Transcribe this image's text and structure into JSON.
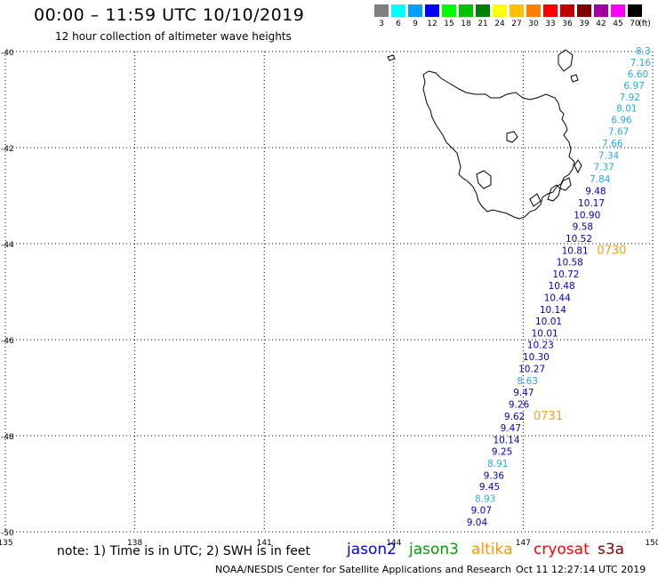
{
  "header": {
    "title": "00:00 – 11:59 UTC 10/10/2019",
    "subtitle": "12 hour collection of altimeter wave heights"
  },
  "scale": {
    "unit": "(ft)",
    "bins": [
      {
        "label": "3",
        "color": "#808080"
      },
      {
        "label": "6",
        "color": "#00ffff"
      },
      {
        "label": "9",
        "color": "#00a0ff"
      },
      {
        "label": "12",
        "color": "#0000ff"
      },
      {
        "label": "15",
        "color": "#00ff00"
      },
      {
        "label": "18",
        "color": "#00c000"
      },
      {
        "label": "21",
        "color": "#008000"
      },
      {
        "label": "24",
        "color": "#ffff00"
      },
      {
        "label": "27",
        "color": "#ffc000"
      },
      {
        "label": "30",
        "color": "#ff8000"
      },
      {
        "label": "33",
        "color": "#ff0000"
      },
      {
        "label": "36",
        "color": "#c00000"
      },
      {
        "label": "39",
        "color": "#800000"
      },
      {
        "label": "42",
        "color": "#a000a0"
      },
      {
        "label": "45",
        "color": "#ff00ff"
      },
      {
        "label": "70",
        "color": "#000000"
      }
    ]
  },
  "map": {
    "lon_min": 135,
    "lon_max": 150,
    "lat_max": -40,
    "lat_min": -50,
    "lon_ticks": [
      "135",
      "138",
      "141",
      "144",
      "147",
      "150"
    ],
    "lat_ticks": [
      "-40",
      "-42",
      "-44",
      "-46",
      "-48",
      "-50"
    ],
    "readings": [
      {
        "v": "8.3",
        "c": "#2aa7e8",
        "lat": -39.98,
        "lon": 149.78
      },
      {
        "v": "7.16",
        "c": "#2aa7e8",
        "lat": -40.22,
        "lon": 149.72
      },
      {
        "v": "6.60",
        "c": "#2aa7e8",
        "lat": -40.46,
        "lon": 149.66
      },
      {
        "v": "6.97",
        "c": "#2aa7e8",
        "lat": -40.7,
        "lon": 149.57
      },
      {
        "v": "7.92",
        "c": "#2aa7e8",
        "lat": -40.94,
        "lon": 149.47
      },
      {
        "v": "8.01",
        "c": "#2aa7e8",
        "lat": -41.18,
        "lon": 149.4
      },
      {
        "v": "6.96",
        "c": "#2aa7e8",
        "lat": -41.42,
        "lon": 149.28
      },
      {
        "v": "7.67",
        "c": "#2aa7e8",
        "lat": -41.66,
        "lon": 149.21
      },
      {
        "v": "7.66",
        "c": "#2aa7e8",
        "lat": -41.91,
        "lon": 149.07
      },
      {
        "v": "7.34",
        "c": "#2aa7e8",
        "lat": -42.16,
        "lon": 148.98
      },
      {
        "v": "7.37",
        "c": "#2aa7e8",
        "lat": -42.4,
        "lon": 148.87
      },
      {
        "v": "7.84",
        "c": "#2aa7e8",
        "lat": -42.65,
        "lon": 148.78
      },
      {
        "v": "9.48",
        "c": "#0000c8",
        "lat": -42.9,
        "lon": 148.68
      },
      {
        "v": "10.17",
        "c": "#0000c8",
        "lat": -43.15,
        "lon": 148.58
      },
      {
        "v": "10.90",
        "c": "#0000c8",
        "lat": -43.4,
        "lon": 148.48
      },
      {
        "v": "9.58",
        "c": "#0000c8",
        "lat": -43.64,
        "lon": 148.38
      },
      {
        "v": "10.52",
        "c": "#0000c8",
        "lat": -43.89,
        "lon": 148.29
      },
      {
        "v": "10.81",
        "c": "#0000c8",
        "lat": -44.14,
        "lon": 148.2
      },
      {
        "v": "10.58",
        "c": "#0000c8",
        "lat": -44.38,
        "lon": 148.08
      },
      {
        "v": "10.72",
        "c": "#0000c8",
        "lat": -44.63,
        "lon": 147.99
      },
      {
        "v": "10.48",
        "c": "#0000c8",
        "lat": -44.87,
        "lon": 147.89
      },
      {
        "v": "10.44",
        "c": "#0000c8",
        "lat": -45.12,
        "lon": 147.79
      },
      {
        "v": "10.14",
        "c": "#0000c8",
        "lat": -45.37,
        "lon": 147.69
      },
      {
        "v": "10.01",
        "c": "#0000c8",
        "lat": -45.61,
        "lon": 147.59
      },
      {
        "v": "10.01",
        "c": "#0000c8",
        "lat": -45.86,
        "lon": 147.5
      },
      {
        "v": "10.23",
        "c": "#0000c8",
        "lat": -46.1,
        "lon": 147.4
      },
      {
        "v": "10.30",
        "c": "#0000c8",
        "lat": -46.35,
        "lon": 147.3
      },
      {
        "v": "10.27",
        "c": "#0000c8",
        "lat": -46.6,
        "lon": 147.2
      },
      {
        "v": "8.63",
        "c": "#2aa7e8",
        "lat": -46.85,
        "lon": 147.1
      },
      {
        "v": "9.47",
        "c": "#0000c8",
        "lat": -47.09,
        "lon": 147.01
      },
      {
        "v": "9.26",
        "c": "#0000c8",
        "lat": -47.34,
        "lon": 146.9
      },
      {
        "v": "9.62",
        "c": "#0000c8",
        "lat": -47.59,
        "lon": 146.8
      },
      {
        "v": "9.47",
        "c": "#0000c8",
        "lat": -47.83,
        "lon": 146.71
      },
      {
        "v": "10.14",
        "c": "#0000c8",
        "lat": -48.08,
        "lon": 146.61
      },
      {
        "v": "9.25",
        "c": "#0000c8",
        "lat": -48.32,
        "lon": 146.51
      },
      {
        "v": "8.91",
        "c": "#2aa7e8",
        "lat": -48.57,
        "lon": 146.41
      },
      {
        "v": "9.36",
        "c": "#0000c8",
        "lat": -48.82,
        "lon": 146.32
      },
      {
        "v": "9.45",
        "c": "#0000c8",
        "lat": -49.06,
        "lon": 146.22
      },
      {
        "v": "8.93",
        "c": "#2aa7e8",
        "lat": -49.31,
        "lon": 146.12
      },
      {
        "v": "9.07",
        "c": "#0000c8",
        "lat": -49.55,
        "lon": 146.03
      },
      {
        "v": "9.04",
        "c": "#0000c8",
        "lat": -49.8,
        "lon": 145.93
      }
    ],
    "time_labels": [
      {
        "v": "0730",
        "lat": -44.12,
        "lon": 149.05
      },
      {
        "v": "0731",
        "lat": -47.57,
        "lon": 147.58
      }
    ]
  },
  "footer": {
    "note": "note: 1) Time is in UTC; 2) SWH is in feet",
    "satellites": [
      {
        "name": "jason2",
        "color": "#0000ff"
      },
      {
        "name": "jason3",
        "color": "#00a000"
      },
      {
        "name": "altika",
        "color": "#ff9900"
      },
      {
        "name": "cryosat",
        "color": "#ff0000"
      },
      {
        "name": "s3a",
        "color": "#800000"
      }
    ],
    "credit": "NOAA/NESDIS Center for Satellite Applications and Research",
    "timestamp": "Oct 11 12:27:14 UTC 2019"
  }
}
